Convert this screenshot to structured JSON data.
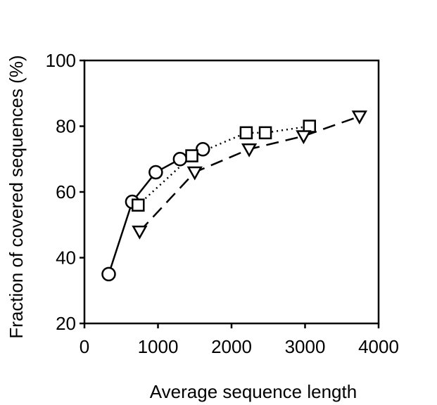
{
  "chart_data": {
    "type": "line",
    "title": "",
    "xlabel": "Average sequence length",
    "ylabel": "Fraction of covered sequences (%)",
    "xlim": [
      0,
      4000
    ],
    "ylim": [
      20,
      100
    ],
    "xticks": [
      0,
      1000,
      2000,
      3000,
      4000
    ],
    "yticks": [
      20,
      40,
      60,
      80,
      100
    ],
    "grid": false,
    "legend": "none",
    "series": [
      {
        "marker": "circle",
        "line_style": "solid",
        "points": [
          {
            "x": 330,
            "y": 35
          },
          {
            "x": 650,
            "y": 57
          },
          {
            "x": 970,
            "y": 66
          },
          {
            "x": 1300,
            "y": 70
          },
          {
            "x": 1610,
            "y": 73
          }
        ]
      },
      {
        "marker": "square",
        "line_style": "dotted",
        "points": [
          {
            "x": 730,
            "y": 56
          },
          {
            "x": 1460,
            "y": 71
          },
          {
            "x": 2200,
            "y": 78
          },
          {
            "x": 2460,
            "y": 78
          },
          {
            "x": 3060,
            "y": 80
          }
        ]
      },
      {
        "marker": "triangle-down",
        "line_style": "dashed",
        "points": [
          {
            "x": 750,
            "y": 48
          },
          {
            "x": 1500,
            "y": 66
          },
          {
            "x": 2240,
            "y": 73
          },
          {
            "x": 2980,
            "y": 77
          },
          {
            "x": 3740,
            "y": 83
          }
        ]
      }
    ]
  }
}
